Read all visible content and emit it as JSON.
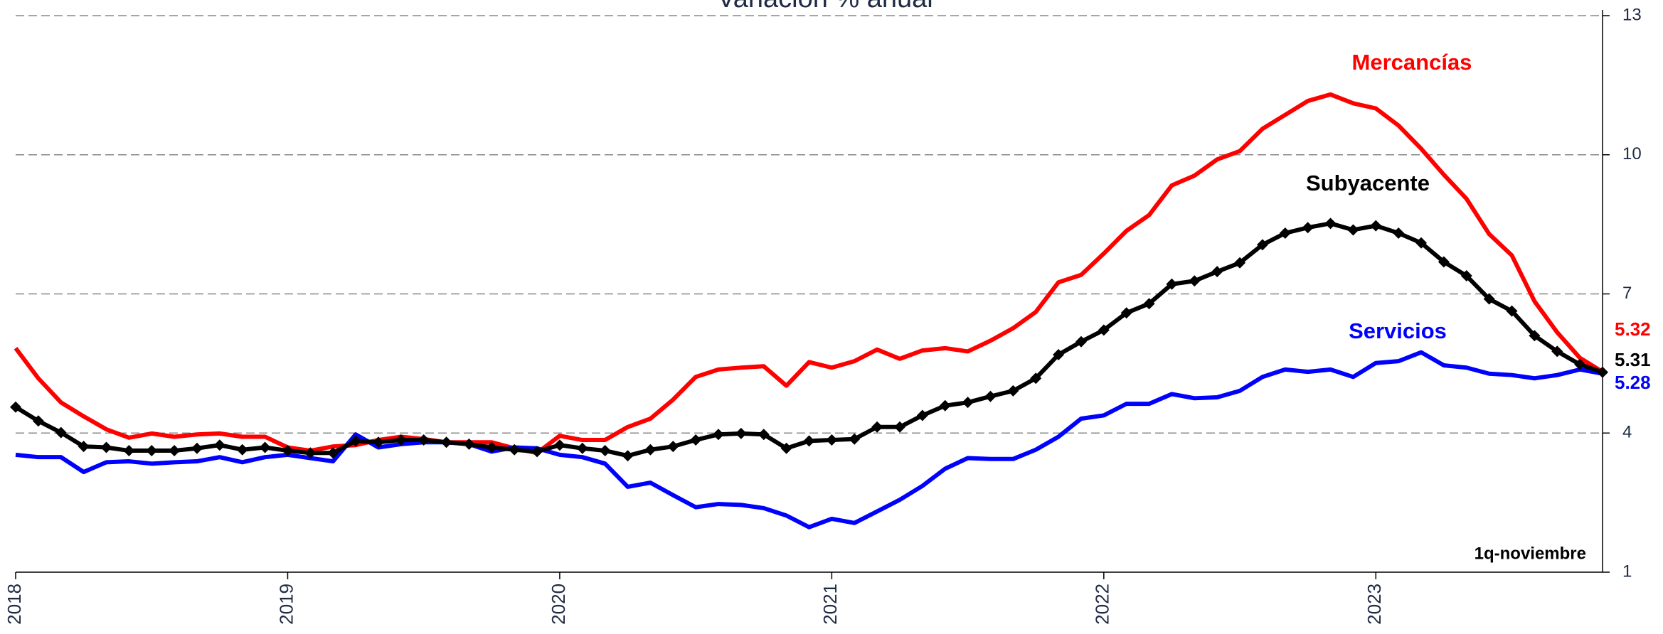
{
  "chart_data": {
    "type": "line",
    "title": "Variación % anual",
    "annotation": "1q-noviembre",
    "categories": [
      "2018",
      null,
      null,
      null,
      null,
      null,
      null,
      null,
      null,
      null,
      null,
      null,
      "2019",
      null,
      null,
      null,
      null,
      null,
      null,
      null,
      null,
      null,
      null,
      null,
      "2020",
      null,
      null,
      null,
      null,
      null,
      null,
      null,
      null,
      null,
      null,
      null,
      "2021",
      null,
      null,
      null,
      null,
      null,
      null,
      null,
      null,
      null,
      null,
      null,
      "2022",
      null,
      null,
      null,
      null,
      null,
      null,
      null,
      null,
      null,
      null,
      null,
      "2023",
      null,
      null,
      null,
      null,
      null,
      null,
      null,
      null,
      null,
      null
    ],
    "series": [
      {
        "name": "Mercancías",
        "color": "#ff0000",
        "marker": "none",
        "values": [
          5.83,
          5.18,
          4.66,
          4.36,
          4.08,
          3.9,
          3.99,
          3.92,
          3.97,
          3.99,
          3.92,
          3.92,
          3.69,
          3.62,
          3.71,
          3.74,
          3.85,
          3.92,
          3.87,
          3.8,
          3.8,
          3.8,
          3.67,
          3.57,
          3.94,
          3.85,
          3.85,
          4.13,
          4.31,
          4.72,
          5.21,
          5.37,
          5.41,
          5.44,
          5.02,
          5.53,
          5.41,
          5.55,
          5.8,
          5.6,
          5.78,
          5.83,
          5.76,
          5.99,
          6.26,
          6.61,
          7.25,
          7.41,
          7.87,
          8.36,
          8.7,
          9.34,
          9.55,
          9.9,
          10.08,
          10.56,
          10.86,
          11.16,
          11.3,
          11.11,
          11.0,
          10.63,
          10.13,
          9.57,
          9.05,
          8.29,
          7.83,
          6.84,
          6.17,
          5.62,
          5.32
        ]
      },
      {
        "name": "Servicios",
        "color": "#0000ff",
        "marker": "none",
        "values": [
          3.53,
          3.48,
          3.48,
          3.16,
          3.37,
          3.39,
          3.34,
          3.37,
          3.39,
          3.48,
          3.37,
          3.48,
          3.53,
          3.46,
          3.39,
          3.97,
          3.69,
          3.76,
          3.8,
          3.8,
          3.76,
          3.6,
          3.69,
          3.67,
          3.53,
          3.48,
          3.34,
          2.84,
          2.93,
          2.66,
          2.4,
          2.47,
          2.45,
          2.38,
          2.22,
          1.97,
          2.15,
          2.06,
          2.31,
          2.56,
          2.86,
          3.23,
          3.46,
          3.44,
          3.44,
          3.64,
          3.92,
          4.31,
          4.38,
          4.63,
          4.63,
          4.84,
          4.75,
          4.77,
          4.91,
          5.21,
          5.37,
          5.32,
          5.37,
          5.21,
          5.51,
          5.55,
          5.74,
          5.46,
          5.41,
          5.28,
          5.25,
          5.18,
          5.25,
          5.37,
          5.28
        ]
      },
      {
        "name": "Subyacente",
        "color": "#000000",
        "marker": "diamond",
        "values": [
          4.56,
          4.26,
          4.01,
          3.71,
          3.69,
          3.62,
          3.62,
          3.62,
          3.67,
          3.74,
          3.64,
          3.69,
          3.62,
          3.57,
          3.57,
          3.83,
          3.8,
          3.85,
          3.85,
          3.8,
          3.76,
          3.69,
          3.64,
          3.6,
          3.74,
          3.67,
          3.62,
          3.51,
          3.64,
          3.71,
          3.85,
          3.97,
          3.99,
          3.97,
          3.67,
          3.83,
          3.85,
          3.87,
          4.13,
          4.13,
          4.38,
          4.59,
          4.66,
          4.79,
          4.91,
          5.18,
          5.69,
          5.97,
          6.22,
          6.59,
          6.79,
          7.21,
          7.28,
          7.48,
          7.67,
          8.06,
          8.31,
          8.43,
          8.52,
          8.38,
          8.47,
          8.31,
          8.1,
          7.69,
          7.39,
          6.89,
          6.63,
          6.1,
          5.76,
          5.48,
          5.31
        ]
      }
    ],
    "ylim": [
      1,
      13
    ],
    "yticks": [
      1,
      4,
      7,
      10,
      13
    ],
    "y_axis_side": "right",
    "grid": true,
    "grid_style": "dashed"
  }
}
